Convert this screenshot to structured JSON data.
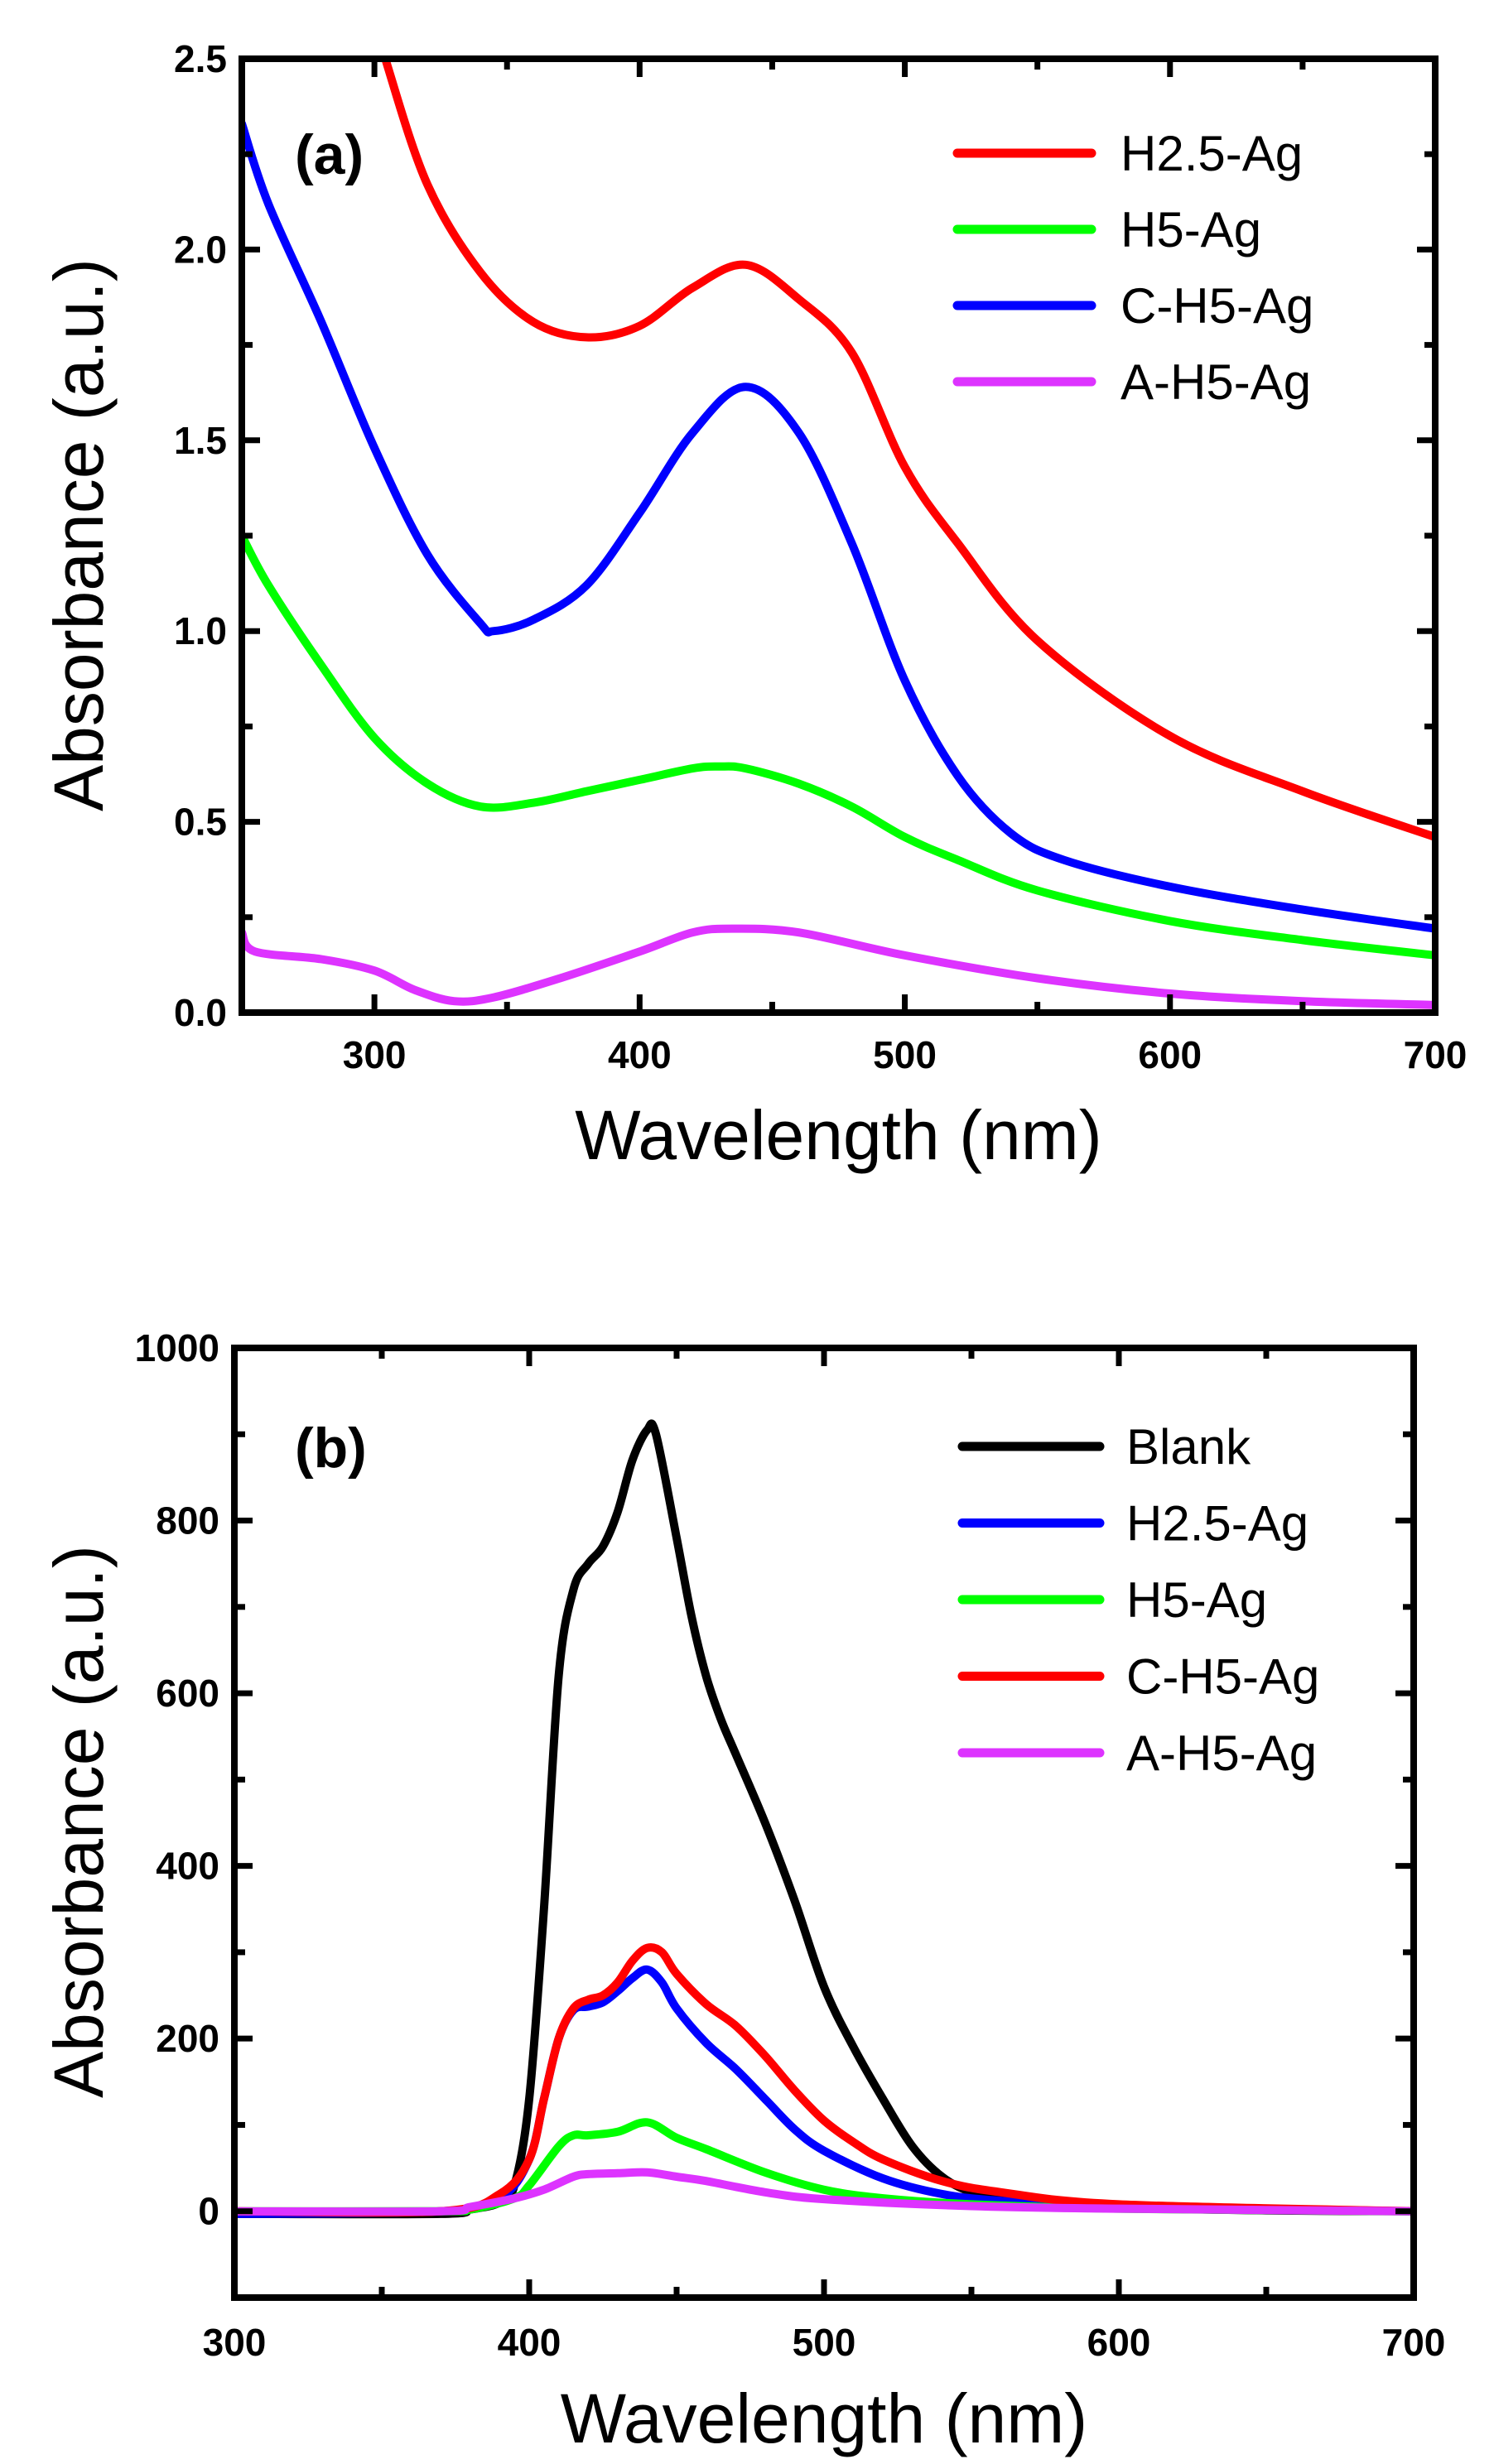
{
  "chart_data": [
    {
      "type": "line",
      "panel_label": "(a)",
      "xlabel": "Wavelength (nm)",
      "ylabel": "Absorbance (a.u.)",
      "xlim": [
        250,
        700
      ],
      "ylim": [
        0,
        2.5
      ],
      "xticks": [
        300,
        400,
        500,
        600,
        700
      ],
      "xtick_labels": [
        "300",
        "400",
        "500",
        "600",
        "700"
      ],
      "xminor_step": 50,
      "yticks": [
        0,
        0.5,
        1.0,
        1.5,
        2.0,
        2.5
      ],
      "ytick_labels": [
        "0.0",
        "0.5",
        "1.0",
        "1.5",
        "2.0",
        "2.5"
      ],
      "yminor_step": 0.25,
      "grid": false,
      "legend_position": "top-right",
      "series": [
        {
          "name": "H2.5-Ag",
          "color": "#ff0000",
          "x": [
            303,
            305,
            320,
            340,
            360,
            380,
            400,
            420,
            440,
            460,
            480,
            500,
            520,
            550,
            600,
            650,
            700
          ],
          "y": [
            2.55,
            2.48,
            2.17,
            1.94,
            1.81,
            1.77,
            1.8,
            1.9,
            1.96,
            1.87,
            1.73,
            1.43,
            1.23,
            0.975,
            0.725,
            0.58,
            0.46
          ]
        },
        {
          "name": "H5-Ag",
          "color": "#00ff00",
          "x": [
            250,
            260,
            280,
            300,
            320,
            340,
            360,
            380,
            400,
            420,
            430,
            440,
            460,
            480,
            500,
            520,
            550,
            600,
            650,
            700
          ],
          "y": [
            1.25,
            1.12,
            0.91,
            0.72,
            0.6,
            0.54,
            0.55,
            0.58,
            0.61,
            0.64,
            0.645,
            0.64,
            0.6,
            0.54,
            0.46,
            0.4,
            0.32,
            0.24,
            0.19,
            0.15
          ]
        },
        {
          "name": "C-H5-Ag",
          "color": "#0000ff",
          "x": [
            250,
            260,
            280,
            300,
            320,
            340,
            345,
            360,
            380,
            400,
            420,
            440,
            460,
            480,
            500,
            520,
            540,
            560,
            600,
            650,
            700
          ],
          "y": [
            2.33,
            2.12,
            1.81,
            1.48,
            1.2,
            1.02,
            1.0,
            1.03,
            1.12,
            1.31,
            1.52,
            1.64,
            1.52,
            1.23,
            0.87,
            0.62,
            0.47,
            0.4,
            0.33,
            0.27,
            0.22
          ]
        },
        {
          "name": "A-H5-Ag",
          "color": "#dd33ff",
          "x": [
            250,
            255,
            280,
            300,
            315,
            330,
            345,
            370,
            400,
            420,
            435,
            460,
            500,
            550,
            600,
            650,
            700
          ],
          "y": [
            0.21,
            0.16,
            0.14,
            0.11,
            0.06,
            0.03,
            0.04,
            0.09,
            0.16,
            0.21,
            0.22,
            0.21,
            0.15,
            0.09,
            0.05,
            0.03,
            0.02
          ]
        }
      ]
    },
    {
      "type": "line",
      "panel_label": "(b)",
      "xlabel": "Wavelength (nm)",
      "ylabel": "Absorbance (a.u.)",
      "xlim": [
        300,
        700
      ],
      "ylim": [
        -100,
        1000
      ],
      "xticks": [
        300,
        400,
        500,
        600,
        700
      ],
      "xtick_labels": [
        "300",
        "400",
        "500",
        "600",
        "700"
      ],
      "xminor_step": 50,
      "yticks": [
        0,
        200,
        400,
        600,
        800,
        1000
      ],
      "ytick_labels": [
        "0",
        "200",
        "400",
        "600",
        "800",
        "1000"
      ],
      "yminor_step": 100,
      "grid": false,
      "legend_position": "top-right",
      "series": [
        {
          "name": "Blank",
          "color": "#000000",
          "x": [
            300,
            370,
            380,
            390,
            395,
            400,
            405,
            410,
            415,
            420,
            425,
            430,
            435,
            440,
            443,
            450,
            455,
            460,
            465,
            470,
            480,
            490,
            500,
            510,
            520,
            530,
            540,
            550,
            560,
            580,
            600,
            650,
            700
          ],
          "y": [
            -3,
            -3,
            2,
            10,
            30,
            130,
            350,
            620,
            720,
            750,
            770,
            810,
            870,
            905,
            900,
            780,
            690,
            620,
            570,
            530,
            450,
            360,
            260,
            190,
            130,
            75,
            40,
            22,
            14,
            7,
            4,
            1,
            0
          ]
        },
        {
          "name": "H2.5-Ag",
          "color": "#0000ff",
          "x": [
            300,
            370,
            390,
            400,
            405,
            410,
            415,
            420,
            425,
            430,
            435,
            440,
            445,
            450,
            460,
            470,
            480,
            490,
            500,
            520,
            540,
            560,
            600,
            700
          ],
          "y": [
            -3,
            0,
            15,
            60,
            130,
            200,
            233,
            237,
            242,
            255,
            270,
            280,
            265,
            235,
            195,
            165,
            130,
            95,
            70,
            38,
            20,
            12,
            5,
            0
          ]
        },
        {
          "name": "H5-Ag",
          "color": "#00ff00",
          "x": [
            300,
            370,
            380,
            395,
            400,
            410,
            415,
            420,
            430,
            440,
            450,
            460,
            480,
            500,
            520,
            550,
            600,
            700
          ],
          "y": [
            0,
            0,
            2,
            15,
            30,
            75,
            88,
            88,
            92,
            103,
            85,
            72,
            45,
            25,
            15,
            8,
            3,
            0
          ]
        },
        {
          "name": "C-H5-Ag",
          "color": "#ff0000",
          "x": [
            300,
            370,
            390,
            400,
            405,
            410,
            415,
            420,
            425,
            430,
            435,
            440,
            445,
            450,
            460,
            470,
            480,
            490,
            500,
            510,
            520,
            540,
            560,
            600,
            700
          ],
          "y": [
            0,
            0,
            20,
            60,
            130,
            200,
            235,
            245,
            250,
            265,
            290,
            305,
            300,
            275,
            240,
            215,
            180,
            140,
            105,
            80,
            60,
            35,
            22,
            8,
            0
          ]
        },
        {
          "name": "A-H5-Ag",
          "color": "#dd33ff",
          "x": [
            300,
            370,
            380,
            395,
            405,
            415,
            420,
            430,
            440,
            450,
            460,
            480,
            500,
            550,
            600,
            700
          ],
          "y": [
            0,
            0,
            5,
            15,
            25,
            40,
            43,
            44,
            45,
            40,
            35,
            22,
            14,
            6,
            3,
            0
          ]
        }
      ]
    }
  ]
}
